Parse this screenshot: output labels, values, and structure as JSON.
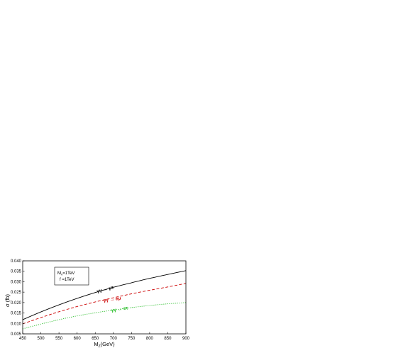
{
  "chart_data": {
    "type": "line",
    "xlabel_main": "M",
    "xlabel_sub": "Z",
    "xlabel_unit": "(GeV)",
    "ylabel": "σ (fb)",
    "xlim": [
      450,
      900
    ],
    "ylim": [
      0.005,
      0.04
    ],
    "xticks": [
      "450",
      "500",
      "550",
      "600",
      "650",
      "700",
      "750",
      "800",
      "850",
      "900"
    ],
    "yticks": [
      "0.005",
      "0.010",
      "0.015",
      "0.020",
      "0.025",
      "0.030",
      "0.035",
      "0.040"
    ],
    "legend_box": {
      "line1_main": "M",
      "line1_sub": "ν",
      "line1_rest": "=1TeV",
      "line2": "f =1TeV"
    },
    "series": [
      {
        "name": "γγ → μτ",
        "color": "#000000",
        "dash": "",
        "x": [
          450,
          500,
          550,
          600,
          650,
          700,
          750,
          800,
          850,
          900
        ],
        "y": [
          0.0118,
          0.0155,
          0.0189,
          0.022,
          0.0248,
          0.0273,
          0.0295,
          0.0316,
          0.0335,
          0.0353
        ]
      },
      {
        "name": "γγ → eμ",
        "color": "#cc0000",
        "dash": "4,2.5",
        "x": [
          450,
          500,
          550,
          600,
          650,
          700,
          750,
          800,
          850,
          900
        ],
        "y": [
          0.0098,
          0.0128,
          0.0156,
          0.0181,
          0.0203,
          0.0223,
          0.0242,
          0.0259,
          0.0275,
          0.0292
        ]
      },
      {
        "name": "γγ → eτ",
        "color": "#22bb22",
        "dash": "1.2,1.6",
        "x": [
          450,
          500,
          550,
          600,
          650,
          700,
          750,
          800,
          850,
          900
        ],
        "y": [
          0.0074,
          0.0097,
          0.0118,
          0.0136,
          0.0151,
          0.0164,
          0.0176,
          0.0186,
          0.0194,
          0.02
        ]
      }
    ]
  }
}
